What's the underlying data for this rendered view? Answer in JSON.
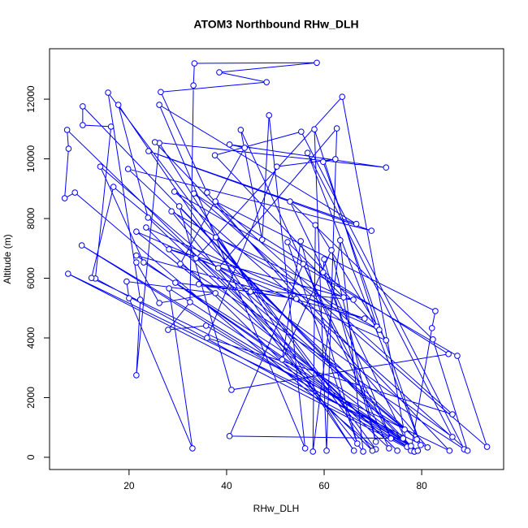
{
  "chart_data": {
    "type": "line",
    "markers": true,
    "title": "ATOM3 Northbound RHw_DLH",
    "x_label": "RHw_DLH",
    "y_label": "Altitude (m)",
    "color": "#0000ff",
    "x": [
      79.2,
      35.8,
      28,
      32.5,
      33.2,
      33.4,
      58.5,
      38.5,
      48.2,
      26.5,
      36,
      81.2,
      7.5,
      78.5,
      10.5,
      10.5,
      16.3,
      13.1,
      77,
      63.7,
      33.7,
      75,
      7.3,
      7.6,
      6.8,
      8.9,
      70.6,
      15.7,
      22.3,
      21.5,
      26.2,
      66.1,
      17.8,
      23.9,
      73.3,
      42.9,
      47.3,
      48.7,
      56.1,
      26.2,
      66.6,
      24,
      69.7,
      19.8,
      79,
      14.1,
      23,
      76.5,
      16.8,
      12.3,
      85.7,
      25.3,
      72.7,
      40.6,
      43.7,
      30.5,
      88.7,
      55.3,
      37.6,
      70.8,
      58,
      60.5,
      62.6,
      38.3,
      86.3,
      56.6,
      79.8,
      59.8,
      62.3,
      50.3,
      36,
      86.3,
      37.7,
      82.8,
      82.1,
      77.8,
      53,
      82.3,
      89.4,
      29.3,
      87.3,
      93.4,
      33.3,
      85.5,
      41,
      30.3,
      77.8,
      21.5,
      72.7,
      58.2,
      57.7,
      63.3,
      68,
      28.7,
      71.3,
      23.5,
      69.9,
      37.8,
      64,
      52.5,
      66.8,
      55.2,
      51.4,
      61.5,
      70.6,
      60,
      59.8,
      73.7,
      55.7,
      40.6,
      76.2,
      10.3,
      78.5,
      21.5,
      68.3,
      28.2,
      66,
      34.3,
      54.3,
      44.9,
      29.5,
      79.2,
      28.2,
      33,
      20,
      19.5,
      37.7,
      26.2,
      21.5
    ],
    "values": [
      220,
      4410,
      4270,
      5200,
      12460,
      13200,
      13220,
      12900,
      12570,
      12240,
      8870,
      330,
      6150,
      190,
      11760,
      11130,
      11080,
      5990,
      350,
      12080,
      6670,
      220,
      10970,
      10340,
      8680,
      8870,
      270,
      12220,
      5280,
      2750,
      10530,
      220,
      11810,
      8030,
      300,
      10970,
      7290,
      11460,
      300,
      11810,
      7820,
      10260,
      7590,
      9660,
      600,
      9740,
      6530,
      930,
      9060,
      6010,
      220,
      10560,
      9710,
      10480,
      10370,
      6480,
      270,
      10910,
      10120,
      4380,
      10990,
      220,
      11020,
      6340,
      680,
      10200,
      410,
      9900,
      9990,
      9740,
      4000,
      1440,
      8570,
      4900,
      4330,
      220,
      8570,
      3950,
      220,
      8900,
      3400,
      350,
      8840,
      3460,
      2260,
      8410,
      380,
      7560,
      3920,
      7780,
      190,
      7270,
      190,
      8240,
      4270,
      7700,
      220,
      7370,
      5360,
      7210,
      460,
      7240,
      3270,
      6940,
      520,
      6640,
      6200,
      630,
      6480,
      710,
      630,
      7100,
      190,
      6760,
      4650,
      6970,
      5280,
      5800,
      5310,
      5550,
      5850,
      220,
      5660,
      300,
      5330,
      5890,
      5500,
      5170,
      6530
    ],
    "xlim": [
      3.7,
      96.8
    ],
    "ylim": [
      -410,
      13690
    ],
    "xticks": [
      20,
      40,
      60,
      80
    ],
    "yticks": [
      0,
      2000,
      4000,
      6000,
      8000,
      10000,
      12000
    ]
  }
}
